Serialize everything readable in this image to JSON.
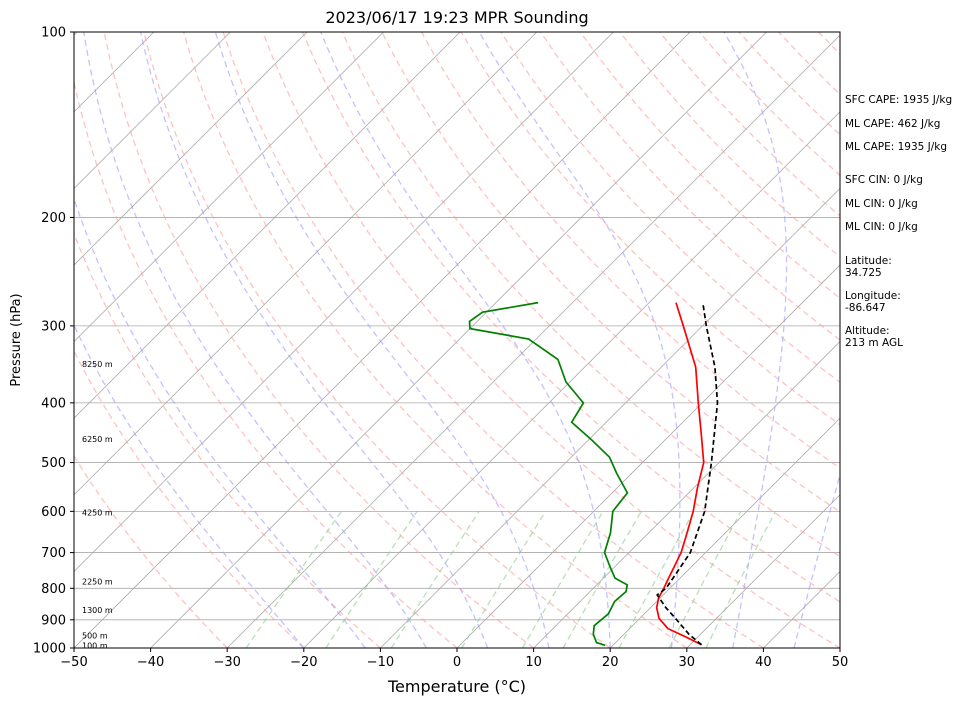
{
  "title": "2023/06/17 19:23 MPR Sounding",
  "chart_data": {
    "type": "line",
    "subtype": "skew-t log-p",
    "xlabel": "Temperature (°C)",
    "ylabel": "Pressure (hPa)",
    "xlim": [
      -50,
      50
    ],
    "ylim": [
      1000,
      100
    ],
    "y_scale": "log",
    "x_ticks": [
      -50,
      -40,
      -30,
      -20,
      -10,
      0,
      10,
      20,
      30,
      40,
      50
    ],
    "x_tick_labels": [
      "−50",
      "−40",
      "−30",
      "−20",
      "−10",
      "0",
      "10",
      "20",
      "30",
      "40",
      "50"
    ],
    "y_ticks": [
      1000,
      900,
      800,
      700,
      600,
      500,
      400,
      300,
      200,
      100
    ],
    "grid": true,
    "height_labels": [
      {
        "p": 990,
        "text": "100 m"
      },
      {
        "p": 955,
        "text": "500 m"
      },
      {
        "p": 868,
        "text": "1300 m"
      },
      {
        "p": 780,
        "text": "2250 m"
      },
      {
        "p": 603,
        "text": "4250 m"
      },
      {
        "p": 458,
        "text": "6250 m"
      },
      {
        "p": 346,
        "text": "8250 m"
      }
    ],
    "series": [
      {
        "role": "temperature",
        "color": "#ff0000",
        "points": [
          {
            "p": 988,
            "t": 31.5
          },
          {
            "p": 960,
            "t": 28.5
          },
          {
            "p": 930,
            "t": 25.0
          },
          {
            "p": 895,
            "t": 22.5
          },
          {
            "p": 860,
            "t": 20.8
          },
          {
            "p": 830,
            "t": 19.8
          },
          {
            "p": 800,
            "t": 19.2
          },
          {
            "p": 770,
            "t": 18.5
          },
          {
            "p": 740,
            "t": 17.8
          },
          {
            "p": 700,
            "t": 16.8
          },
          {
            "p": 650,
            "t": 15.0
          },
          {
            "p": 600,
            "t": 13.0
          },
          {
            "p": 550,
            "t": 10.5
          },
          {
            "p": 500,
            "t": 8.0
          },
          {
            "p": 450,
            "t": 4.0
          },
          {
            "p": 400,
            "t": -0.5
          },
          {
            "p": 350,
            "t": -5.5
          },
          {
            "p": 300,
            "t": -12.5
          },
          {
            "p": 275,
            "t": -16.5
          }
        ]
      },
      {
        "role": "dewpoint",
        "color": "#008000",
        "points": [
          {
            "p": 990,
            "t": 19.0
          },
          {
            "p": 980,
            "t": 17.5
          },
          {
            "p": 950,
            "t": 16.0
          },
          {
            "p": 920,
            "t": 15.0
          },
          {
            "p": 880,
            "t": 15.3
          },
          {
            "p": 840,
            "t": 14.5
          },
          {
            "p": 810,
            "t": 14.7
          },
          {
            "p": 790,
            "t": 14.0
          },
          {
            "p": 770,
            "t": 11.5
          },
          {
            "p": 740,
            "t": 9.5
          },
          {
            "p": 700,
            "t": 6.8
          },
          {
            "p": 650,
            "t": 5.0
          },
          {
            "p": 600,
            "t": 2.5
          },
          {
            "p": 560,
            "t": 2.0
          },
          {
            "p": 520,
            "t": -2.0
          },
          {
            "p": 490,
            "t": -5.0
          },
          {
            "p": 460,
            "t": -9.5
          },
          {
            "p": 430,
            "t": -14.5
          },
          {
            "p": 400,
            "t": -15.5
          },
          {
            "p": 370,
            "t": -20.5
          },
          {
            "p": 340,
            "t": -24.5
          },
          {
            "p": 315,
            "t": -31.0
          },
          {
            "p": 303,
            "t": -40.0
          },
          {
            "p": 295,
            "t": -41.0
          },
          {
            "p": 285,
            "t": -40.5
          },
          {
            "p": 275,
            "t": -34.5
          }
        ]
      },
      {
        "role": "parcel",
        "color": "#000000",
        "dashed": true,
        "points": [
          {
            "p": 988,
            "t": 31.5
          },
          {
            "p": 950,
            "t": 28.5
          },
          {
            "p": 900,
            "t": 25.0
          },
          {
            "p": 860,
            "t": 22.0
          },
          {
            "p": 820,
            "t": 19.2
          },
          {
            "p": 800,
            "t": 19.5
          },
          {
            "p": 700,
            "t": 18.0
          },
          {
            "p": 600,
            "t": 14.5
          },
          {
            "p": 500,
            "t": 9.0
          },
          {
            "p": 400,
            "t": 2.0
          },
          {
            "p": 350,
            "t": -3.0
          },
          {
            "p": 300,
            "t": -9.5
          },
          {
            "p": 275,
            "t": -13.0
          }
        ]
      }
    ]
  },
  "info": {
    "sfc_cape": "SFC CAPE: 1935 J/kg",
    "ml_cape_1": "ML CAPE: 462 J/kg",
    "ml_cape_2": "ML CAPE: 1935 J/kg",
    "sfc_cin": "SFC CIN: 0 J/kg",
    "ml_cin_1": "ML CIN: 0 J/kg",
    "ml_cin_2": "ML CIN: 0 J/kg",
    "latitude": "Latitude:\n34.725",
    "longitude": "Longitude:\n-86.647",
    "altitude": "Altitude:\n213 m AGL"
  },
  "colors": {
    "isotherm": "#aaaaaa",
    "dry_adiabat": "#ff9999",
    "moist_adiabat": "#9999ff",
    "mixing_ratio": "#88cc88"
  }
}
